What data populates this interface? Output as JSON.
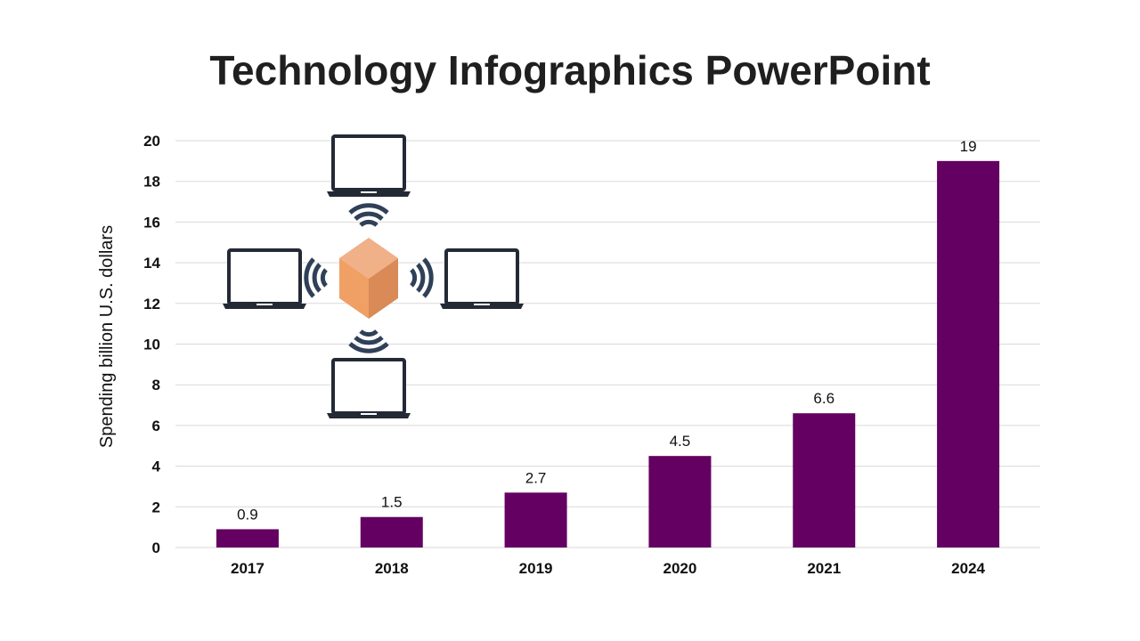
{
  "title": "Technology Infographics PowerPoint",
  "colors": {
    "bar": "#640062",
    "grid": "#d9d9d9",
    "icon_dark": "#232a35",
    "wave": "#2f4058",
    "cube_top": "#f0b088",
    "cube_left": "#f0a064",
    "cube_right": "#d98a57"
  },
  "illustration": {
    "center": "cube-icon",
    "devices": [
      "laptop-icon",
      "laptop-icon",
      "laptop-icon",
      "laptop-icon"
    ],
    "signals": [
      "wifi-signal-icon",
      "wifi-signal-icon",
      "wifi-signal-icon",
      "wifi-signal-icon"
    ]
  },
  "chart_data": {
    "type": "bar",
    "title": "",
    "categories": [
      "2017",
      "2018",
      "2019",
      "2020",
      "2021",
      "2024"
    ],
    "values": [
      0.9,
      1.5,
      2.7,
      4.5,
      6.6,
      19
    ],
    "data_labels": [
      "0.9",
      "1.5",
      "2.7",
      "4.5",
      "6.6",
      "19"
    ],
    "xlabel": "",
    "ylabel": "Spending billion U.S. dollars",
    "ylim": [
      0,
      20
    ],
    "yticks": [
      "0",
      "2",
      "4",
      "6",
      "8",
      "10",
      "12",
      "14",
      "16",
      "18",
      "20"
    ],
    "grid": true,
    "legend": "none"
  }
}
